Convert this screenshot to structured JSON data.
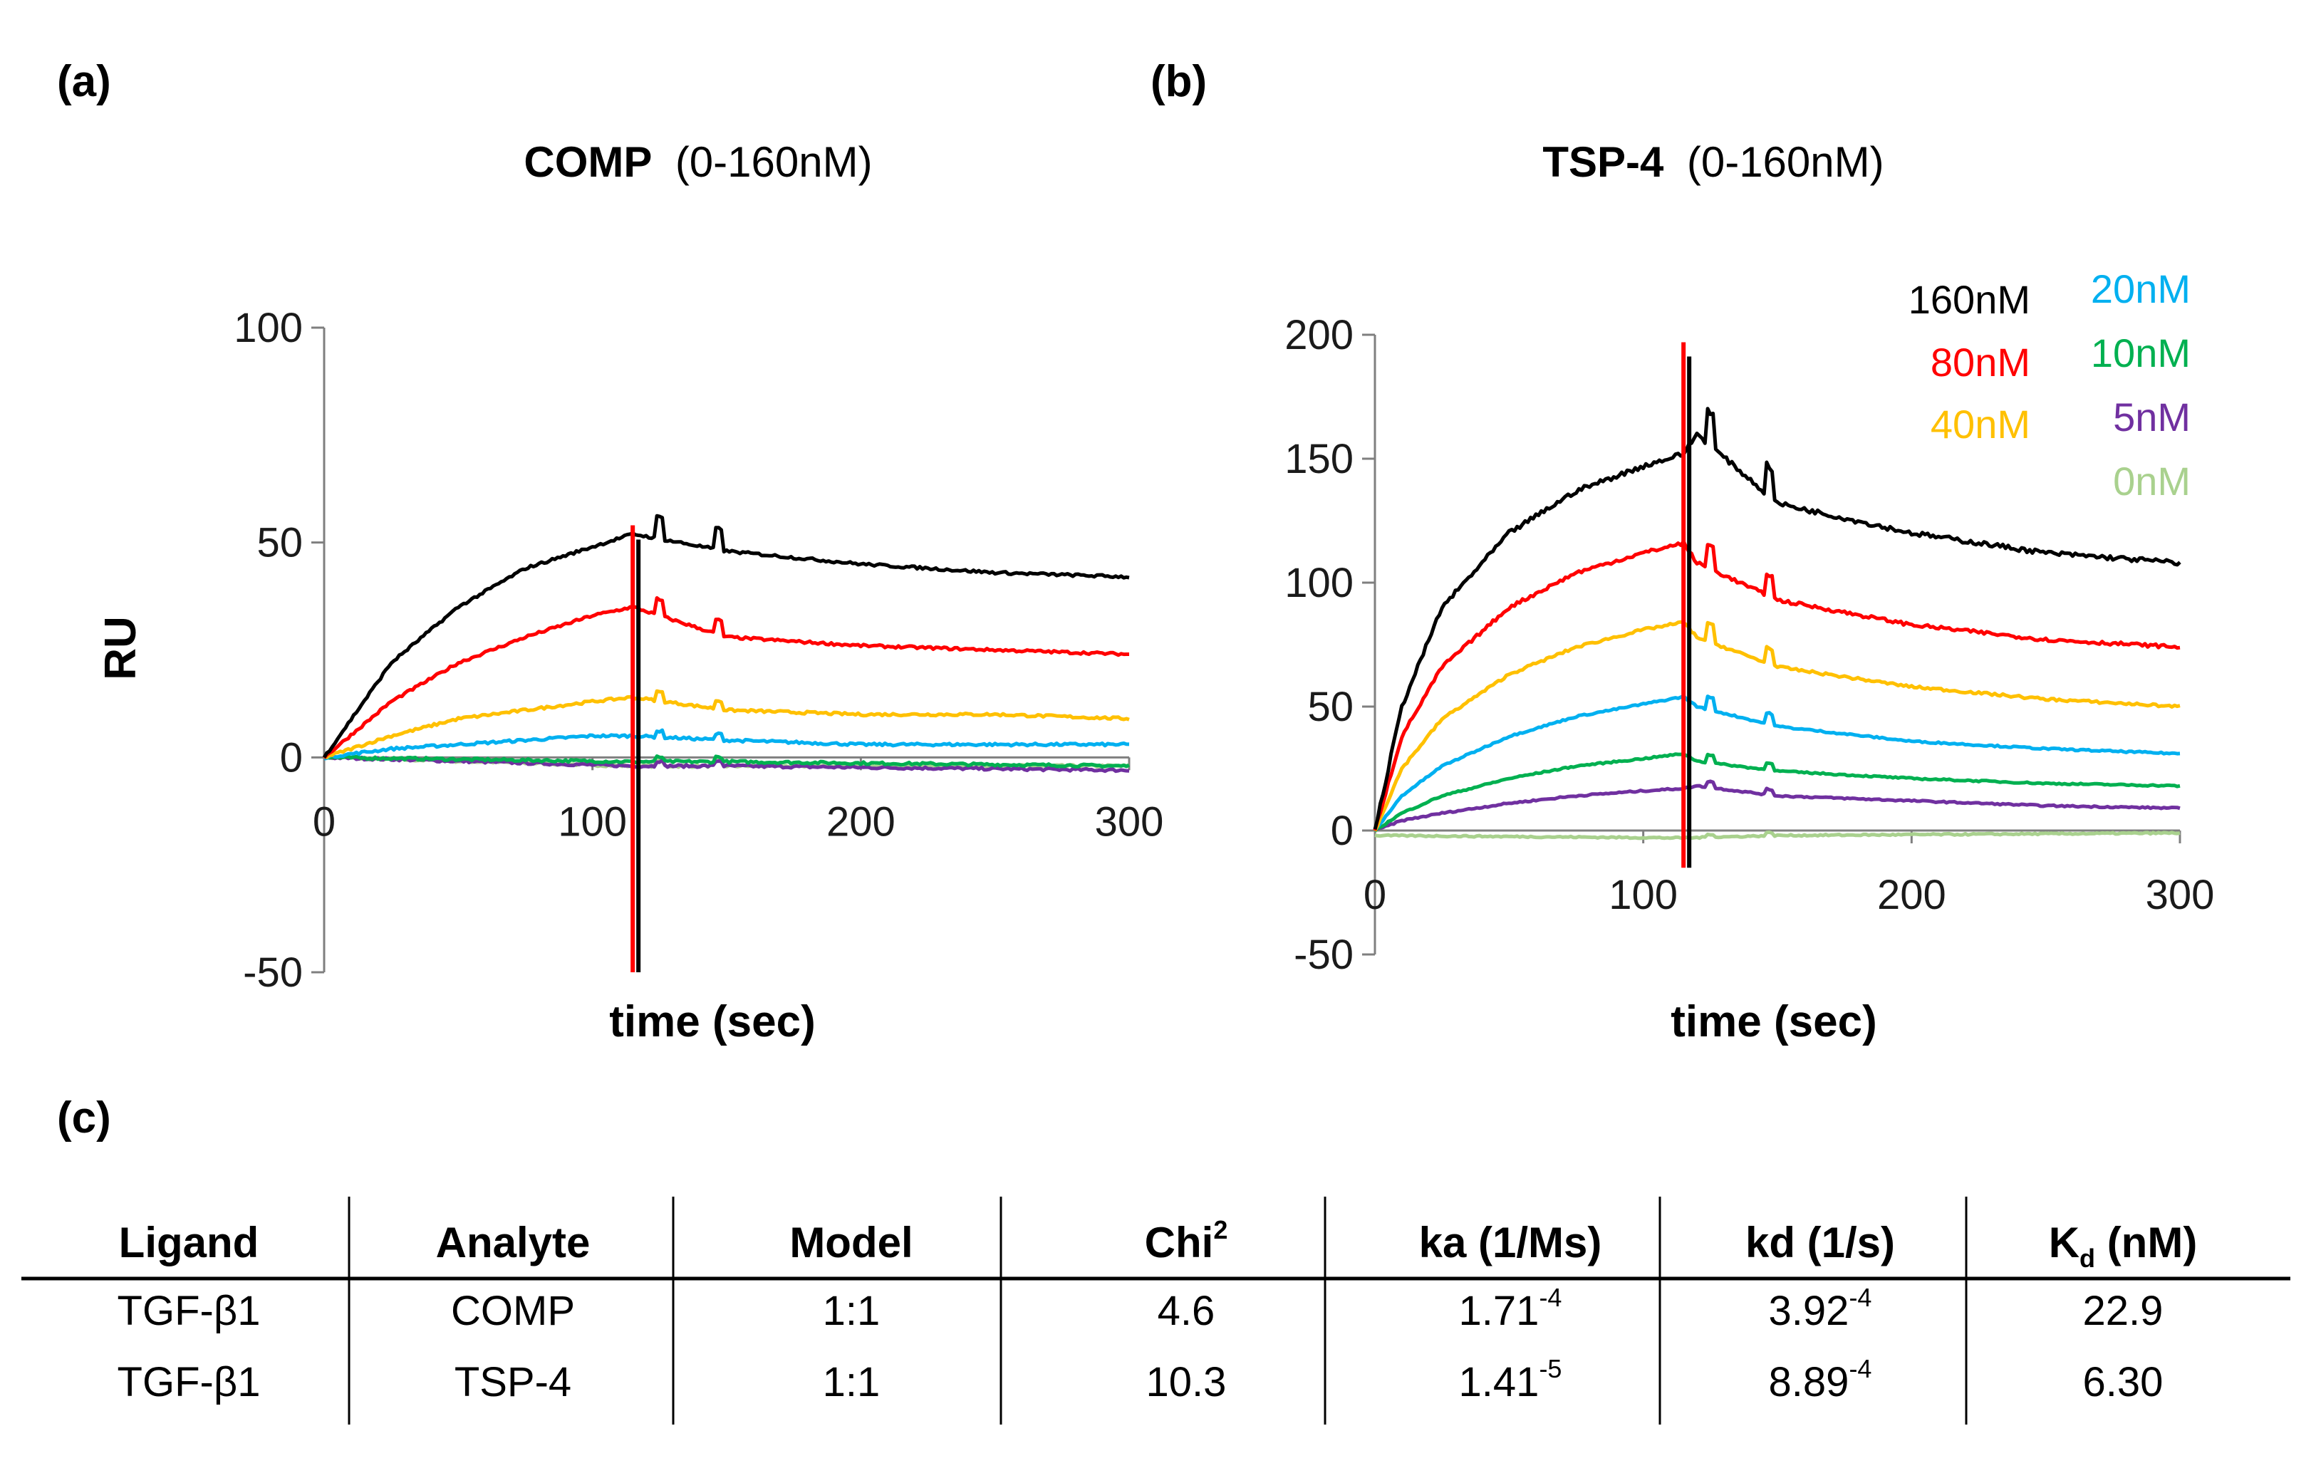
{
  "panels": {
    "a": {
      "label": "(a)",
      "title_bold": "COMP",
      "title_rest": "(0-160nM)",
      "ylabel": "RU",
      "xlabel": "time (sec)"
    },
    "b": {
      "label": "(b)",
      "title_bold": "TSP-4",
      "title_rest": "(0-160nM)",
      "xlabel": "time (sec)"
    },
    "c": {
      "label": "(c)"
    }
  },
  "legend": [
    {
      "label": "160nM",
      "color": "#000000"
    },
    {
      "label": "80nM",
      "color": "#ff0000"
    },
    {
      "label": "40nM",
      "color": "#ffc000"
    },
    {
      "label": "20nM",
      "color": "#00b0f0"
    },
    {
      "label": "10nM",
      "color": "#00b050"
    },
    {
      "label": "5nM",
      "color": "#7030a0"
    },
    {
      "label": "0nM",
      "color": "#a9d18e"
    }
  ],
  "chart_data": [
    {
      "type": "line",
      "title": "COMP (0-160nM)",
      "xlabel": "time (sec)",
      "ylabel": "RU",
      "xlim": [
        0,
        300
      ],
      "ylim": [
        -50,
        100
      ],
      "xticks": [
        "0",
        "100",
        "200",
        "300"
      ],
      "yticks": [
        "-50",
        "0",
        "50",
        "100"
      ],
      "injection_end": 115,
      "series": [
        {
          "name": "160nM",
          "color": "#000000",
          "x": [
            0,
            25,
            50,
            75,
            100,
            115,
            150,
            200,
            250,
            300
          ],
          "y": [
            0,
            22,
            35,
            44,
            49,
            52,
            48,
            45,
            43,
            42
          ]
        },
        {
          "name": "80nM",
          "color": "#ff0000",
          "x": [
            0,
            25,
            50,
            75,
            100,
            115,
            150,
            200,
            250,
            300
          ],
          "y": [
            0,
            13,
            22,
            28,
            33,
            35,
            28,
            26,
            25,
            24
          ]
        },
        {
          "name": "40nM",
          "color": "#ffc000",
          "x": [
            0,
            25,
            50,
            75,
            100,
            115,
            150,
            200,
            250,
            300
          ],
          "y": [
            0,
            5,
            9,
            11,
            13,
            14,
            11,
            10,
            10,
            9
          ]
        },
        {
          "name": "20nM",
          "color": "#00b0f0",
          "x": [
            0,
            25,
            50,
            75,
            100,
            115,
            150,
            200,
            250,
            300
          ],
          "y": [
            0,
            2,
            3,
            4,
            5,
            5,
            4,
            3,
            3,
            3
          ]
        },
        {
          "name": "10nM",
          "color": "#00b050",
          "x": [
            0,
            115,
            150,
            300
          ],
          "y": [
            0,
            -1,
            -1,
            -2
          ]
        },
        {
          "name": "5nM",
          "color": "#7030a0",
          "x": [
            0,
            115,
            150,
            300
          ],
          "y": [
            0,
            -2,
            -2,
            -3
          ]
        },
        {
          "name": "0nM",
          "color": "#a9d18e",
          "x": [
            0,
            115,
            150,
            300
          ],
          "y": [
            0,
            -2,
            -2,
            -2
          ]
        }
      ]
    },
    {
      "type": "line",
      "title": "TSP-4 (0-160nM)",
      "xlabel": "time (sec)",
      "ylabel": "",
      "xlim": [
        0,
        300
      ],
      "ylim": [
        -50,
        200
      ],
      "xticks": [
        "0",
        "100",
        "200",
        "300"
      ],
      "yticks": [
        "-50",
        "0",
        "50",
        "100",
        "150",
        "200"
      ],
      "injection_end": 115,
      "series": [
        {
          "name": "160nM",
          "color": "#000000",
          "x": [
            0,
            10,
            25,
            50,
            75,
            100,
            115,
            120,
            150,
            200,
            250,
            300
          ],
          "y": [
            0,
            50,
            90,
            120,
            137,
            147,
            152,
            160,
            132,
            120,
            112,
            108
          ]
        },
        {
          "name": "80nM",
          "color": "#ff0000",
          "x": [
            0,
            10,
            25,
            50,
            75,
            100,
            115,
            120,
            150,
            200,
            250,
            300
          ],
          "y": [
            0,
            38,
            66,
            90,
            104,
            112,
            116,
            108,
            93,
            83,
            77,
            74
          ]
        },
        {
          "name": "40nM",
          "color": "#ffc000",
          "x": [
            0,
            10,
            25,
            50,
            75,
            100,
            115,
            120,
            150,
            200,
            250,
            300
          ],
          "y": [
            0,
            25,
            45,
            63,
            74,
            81,
            84,
            78,
            66,
            58,
            53,
            50
          ]
        },
        {
          "name": "20nM",
          "color": "#00b0f0",
          "x": [
            0,
            10,
            25,
            50,
            75,
            100,
            115,
            120,
            150,
            200,
            250,
            300
          ],
          "y": [
            0,
            14,
            26,
            38,
            46,
            51,
            54,
            50,
            42,
            36,
            33,
            31
          ]
        },
        {
          "name": "10nM",
          "color": "#00b050",
          "x": [
            0,
            10,
            25,
            50,
            75,
            100,
            115,
            120,
            150,
            200,
            250,
            300
          ],
          "y": [
            0,
            7,
            14,
            21,
            26,
            29,
            31,
            28,
            24,
            21,
            19,
            18
          ]
        },
        {
          "name": "5nM",
          "color": "#7030a0",
          "x": [
            0,
            10,
            25,
            50,
            75,
            100,
            115,
            120,
            150,
            200,
            250,
            300
          ],
          "y": [
            0,
            4,
            7,
            11,
            14,
            16,
            17,
            18,
            14,
            12,
            10,
            9
          ]
        },
        {
          "name": "0nM",
          "color": "#a9d18e",
          "x": [
            0,
            115,
            150,
            300
          ],
          "y": [
            -2,
            -3,
            -2,
            -1
          ]
        }
      ]
    }
  ],
  "table": {
    "headers": [
      {
        "text": "Ligand"
      },
      {
        "text": "Analyte"
      },
      {
        "text": "Model"
      },
      {
        "text": "Chi",
        "sup": "2"
      },
      {
        "text": "ka (1/Ms)"
      },
      {
        "text": "kd (1/s)"
      },
      {
        "text": "K",
        "sub": "d",
        "rest": " (nM)"
      }
    ],
    "rows": [
      [
        {
          "text": "TGF-β1"
        },
        {
          "text": "COMP"
        },
        {
          "text": "1:1"
        },
        {
          "text": "4.6"
        },
        {
          "text": "1.71",
          "sup": "-4"
        },
        {
          "text": "3.92",
          "sup": "-4"
        },
        {
          "text": "22.9"
        }
      ],
      [
        {
          "text": "TGF-β1"
        },
        {
          "text": "TSP-4"
        },
        {
          "text": "1:1"
        },
        {
          "text": "10.3"
        },
        {
          "text": "1.41",
          "sup": "-5"
        },
        {
          "text": "8.89",
          "sup": "-4"
        },
        {
          "text": "6.30"
        }
      ]
    ]
  }
}
